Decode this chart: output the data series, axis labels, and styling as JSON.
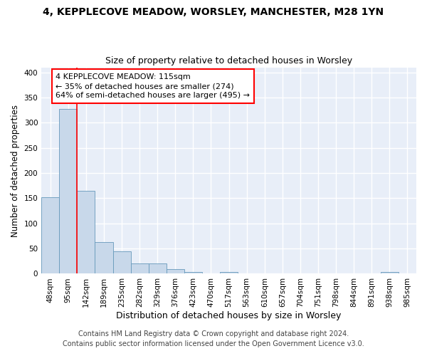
{
  "title": "4, KEPPLECOVE MEADOW, WORSLEY, MANCHESTER, M28 1YN",
  "subtitle": "Size of property relative to detached houses in Worsley",
  "xlabel": "Distribution of detached houses by size in Worsley",
  "ylabel": "Number of detached properties",
  "bar_labels": [
    "48sqm",
    "95sqm",
    "142sqm",
    "189sqm",
    "235sqm",
    "282sqm",
    "329sqm",
    "376sqm",
    "423sqm",
    "470sqm",
    "517sqm",
    "563sqm",
    "610sqm",
    "657sqm",
    "704sqm",
    "751sqm",
    "798sqm",
    "844sqm",
    "891sqm",
    "938sqm",
    "985sqm"
  ],
  "bar_values": [
    152,
    328,
    164,
    63,
    44,
    21,
    21,
    9,
    4,
    0,
    4,
    0,
    0,
    0,
    0,
    0,
    0,
    0,
    0,
    3,
    0
  ],
  "bar_color": "#c8d8ea",
  "bar_edge_color": "#6699bb",
  "red_line_x": 1.5,
  "annotation_text": "4 KEPPLECOVE MEADOW: 115sqm\n← 35% of detached houses are smaller (274)\n64% of semi-detached houses are larger (495) →",
  "ylim": [
    0,
    410
  ],
  "yticks": [
    0,
    50,
    100,
    150,
    200,
    250,
    300,
    350,
    400
  ],
  "background_color": "#e8eef8",
  "grid_color": "white",
  "footer": "Contains HM Land Registry data © Crown copyright and database right 2024.\nContains public sector information licensed under the Open Government Licence v3.0.",
  "title_fontsize": 10,
  "subtitle_fontsize": 9,
  "xlabel_fontsize": 9,
  "ylabel_fontsize": 8.5,
  "annotation_fontsize": 8,
  "footer_fontsize": 7,
  "tick_fontsize": 7.5
}
